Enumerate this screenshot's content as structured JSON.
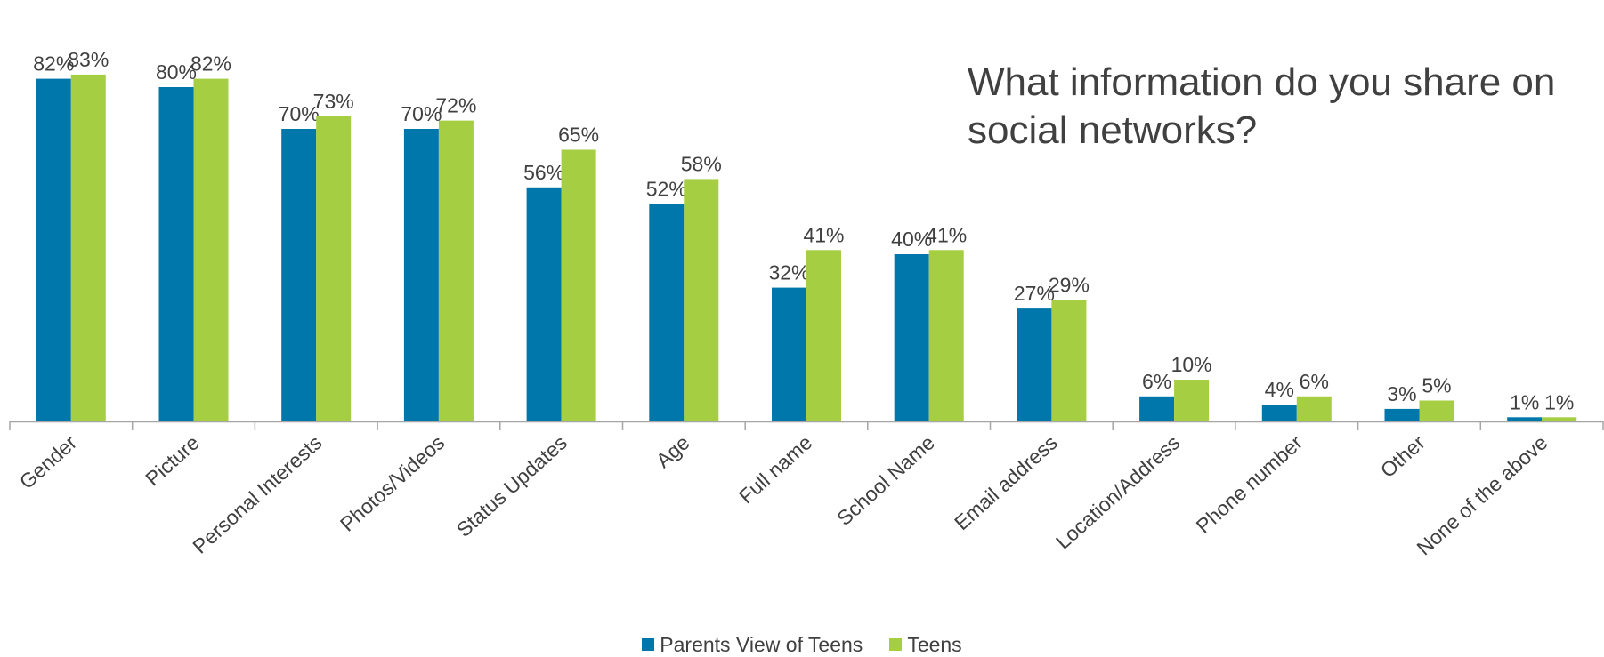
{
  "chart_data": {
    "type": "bar",
    "title": "What information do you share on social networks?",
    "categories": [
      "Gender",
      "Picture",
      "Personal Interests",
      "Photos/Videos",
      "Status Updates",
      "Age",
      "Full name",
      "School Name",
      "Email address",
      "Location/Address",
      "Phone number",
      "Other",
      "None of the above"
    ],
    "series": [
      {
        "name": "Parents View of Teens",
        "color": "#0077aa",
        "values": [
          82,
          80,
          70,
          70,
          56,
          52,
          32,
          40,
          27,
          6,
          4,
          3,
          1
        ],
        "labels": [
          "82%",
          "80%",
          "70%",
          "70%",
          "56%",
          "52%",
          "32%",
          "40%",
          "27%",
          "6%",
          "4%",
          "3%",
          "1%"
        ]
      },
      {
        "name": "Teens",
        "color": "#a6ce42",
        "values": [
          83,
          82,
          73,
          72,
          65,
          58,
          41,
          41,
          29,
          10,
          6,
          5,
          1
        ],
        "labels": [
          "83%",
          "82%",
          "73%",
          "72%",
          "65%",
          "58%",
          "41%",
          "41%",
          "29%",
          "10%",
          "6%",
          "5%",
          "1%"
        ]
      }
    ],
    "ylim": [
      0,
      100
    ],
    "grid": false,
    "legend_position": "bottom"
  }
}
